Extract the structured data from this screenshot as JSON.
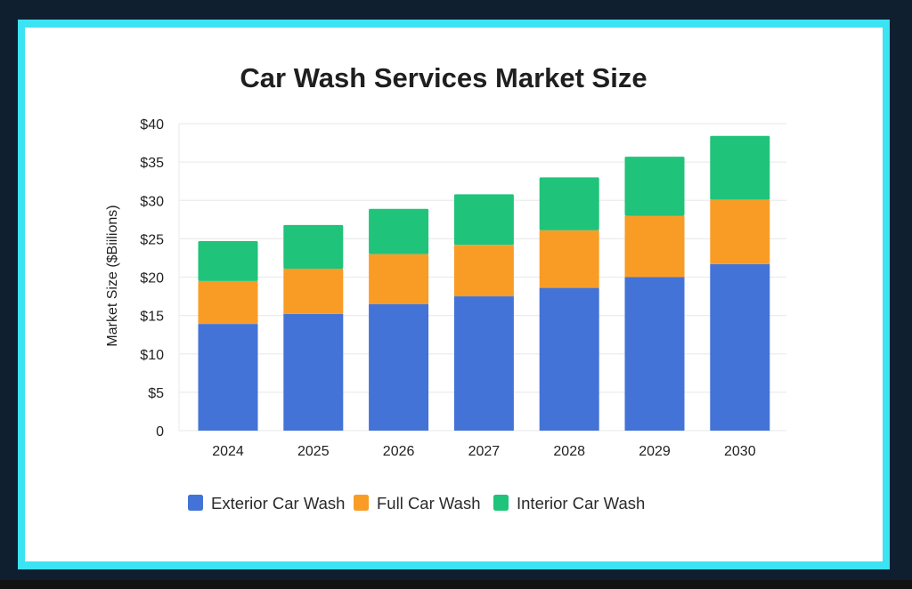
{
  "chart_data": {
    "type": "bar",
    "stacked": true,
    "title": "Car Wash Services Market Size",
    "xlabel": "",
    "ylabel": "Market Size ($Biilions)",
    "ylim": [
      0,
      40
    ],
    "yticks": [
      0,
      5,
      10,
      15,
      20,
      25,
      30,
      35,
      40
    ],
    "ytick_labels": [
      "0",
      "$5",
      "$10",
      "$15",
      "$20",
      "$25",
      "$30",
      "$35",
      "$40"
    ],
    "grid": true,
    "legend_position": "bottom-center",
    "categories": [
      "2024",
      "2025",
      "2026",
      "2027",
      "2028",
      "2029",
      "2030"
    ],
    "series": [
      {
        "name": "Exterior Car Wash",
        "color": "#4373d6",
        "values": [
          13.9,
          15.2,
          16.5,
          17.5,
          18.6,
          20.0,
          21.7
        ]
      },
      {
        "name": "Full Car Wash",
        "color": "#f99c26",
        "values": [
          5.6,
          5.9,
          6.5,
          6.7,
          7.5,
          8.0,
          8.4
        ]
      },
      {
        "name": "Interior Car Wash",
        "color": "#20c37a",
        "values": [
          5.2,
          5.7,
          5.9,
          6.6,
          6.9,
          7.7,
          8.3
        ]
      }
    ]
  },
  "theme": {
    "frame_border_color": "#3ce3f3",
    "background_color": "#0f1f30"
  }
}
